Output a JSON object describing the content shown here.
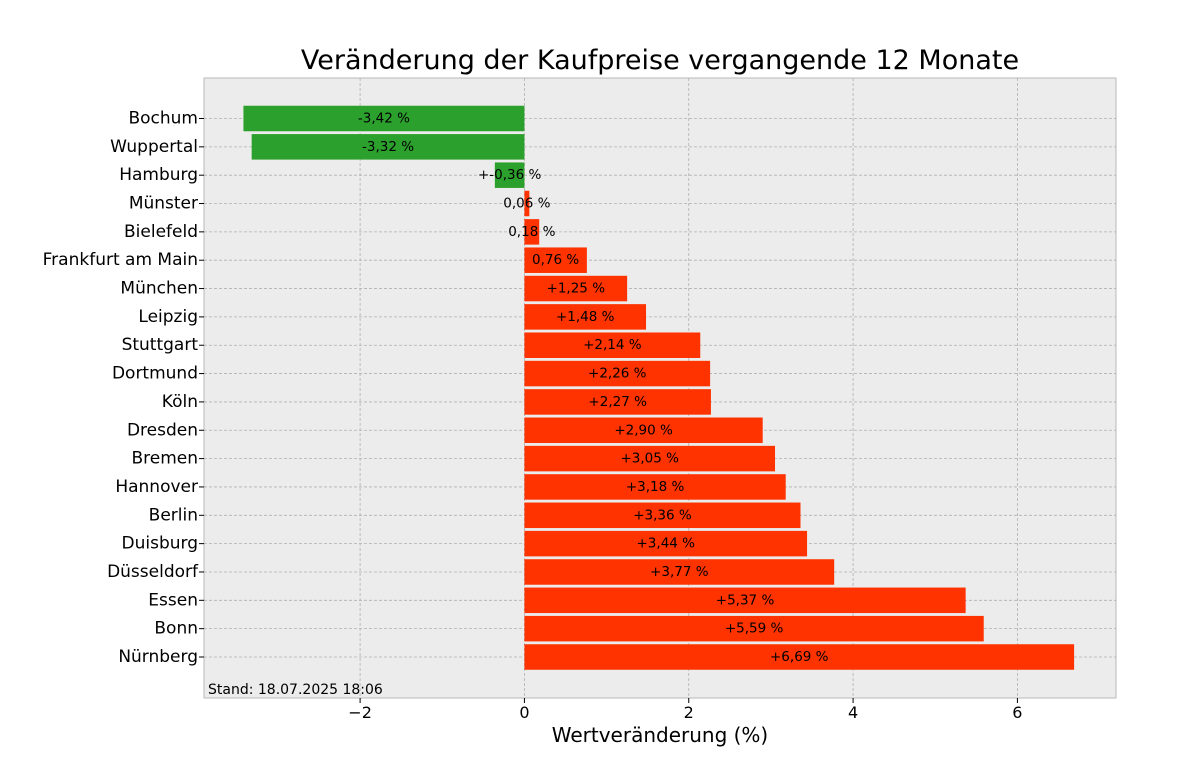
{
  "chart_data": {
    "type": "bar",
    "orientation": "horizontal",
    "title": "Veränderung der Kaufpreise vergangende 12 Monate",
    "xlabel": "Wertveränderung (%)",
    "ylabel": "",
    "xlim": [
      -3.9,
      7.2
    ],
    "xticks": [
      -2,
      0,
      2,
      4,
      6
    ],
    "xtick_labels": [
      "−2",
      "0",
      "2",
      "4",
      "6"
    ],
    "grid": true,
    "categories": [
      "Bochum",
      "Wuppertal",
      "Hamburg",
      "Münster",
      "Bielefeld",
      "Frankfurt am Main",
      "München",
      "Leipzig",
      "Stuttgart",
      "Dortmund",
      "Köln",
      "Dresden",
      "Bremen",
      "Hannover",
      "Berlin",
      "Duisburg",
      "Düsseldorf",
      "Essen",
      "Bonn",
      "Nürnberg"
    ],
    "values": [
      -3.42,
      -3.32,
      -0.36,
      0.06,
      0.18,
      0.76,
      1.25,
      1.48,
      2.14,
      2.26,
      2.27,
      2.9,
      3.05,
      3.18,
      3.36,
      3.44,
      3.77,
      5.37,
      5.59,
      6.69
    ],
    "value_labels": [
      "-3,42 %",
      "-3,32 %",
      "+-0,36 %",
      "0,06 %",
      "0,18 %",
      "0,76 %",
      "+1,25 %",
      "+1,48 %",
      "+2,14 %",
      "+2,26 %",
      "+2,27 %",
      "+2,90 %",
      "+3,05 %",
      "+3,18 %",
      "+3,36 %",
      "+3,44 %",
      "+3,77 %",
      "+5,37 %",
      "+5,59 %",
      "+6,69 %"
    ],
    "colors": {
      "negative": "#2ca02c",
      "positive": "#ff3300",
      "background": "#ececec",
      "grid": "#b0b0b0"
    },
    "annotation": "Stand: 18.07.2025 18:06"
  }
}
